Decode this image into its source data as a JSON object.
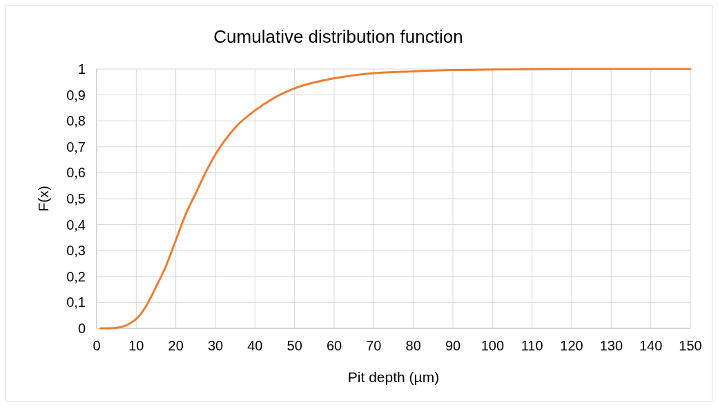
{
  "chart_data": {
    "type": "line",
    "title": "Cumulative distribution function",
    "xlabel": "Pit depth (µm)",
    "ylabel": "F(x)",
    "x": [
      1,
      3,
      5,
      7,
      8.5,
      10,
      12.5,
      15,
      17.5,
      20,
      22.5,
      25,
      27.5,
      30,
      35,
      40,
      45,
      50,
      60,
      70,
      80,
      90,
      100,
      120,
      150
    ],
    "series": [
      {
        "color": "#ed7d31",
        "values": [
          0,
          0,
          0.002,
          0.009,
          0.02,
          0.036,
          0.086,
          0.16,
          0.24,
          0.34,
          0.44,
          0.52,
          0.6,
          0.67,
          0.774,
          0.84,
          0.89,
          0.925,
          0.964,
          0.984,
          0.991,
          0.996,
          0.998,
          1,
          1
        ]
      }
    ],
    "xlim": [
      0,
      150
    ],
    "xticks": [
      0,
      10,
      20,
      30,
      40,
      50,
      60,
      70,
      80,
      90,
      100,
      110,
      120,
      130,
      140,
      150
    ],
    "ylim": [
      0,
      1
    ],
    "yticks": [
      {
        "value": 0,
        "label": "0"
      },
      {
        "value": 0.1,
        "label": "0,1"
      },
      {
        "value": 0.2,
        "label": "0,2"
      },
      {
        "value": 0.3,
        "label": "0,3"
      },
      {
        "value": 0.4,
        "label": "0,4"
      },
      {
        "value": 0.5,
        "label": "0,5"
      },
      {
        "value": 0.6,
        "label": "0,6"
      },
      {
        "value": 0.7,
        "label": "0,7"
      },
      {
        "value": 0.8,
        "label": "0,8"
      },
      {
        "value": 0.9,
        "label": "0,9"
      },
      {
        "value": 1,
        "label": "1"
      }
    ],
    "grid": true,
    "marker": "none",
    "line_style": "solid"
  }
}
